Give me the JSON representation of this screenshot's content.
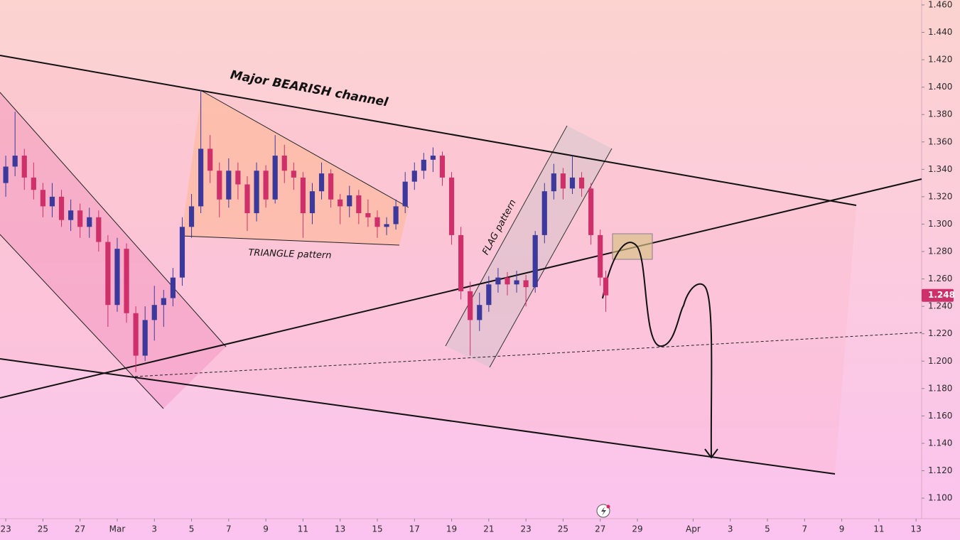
{
  "chart_data": {
    "type": "candlestick",
    "x": [
      0,
      0.5,
      1,
      1.5,
      2,
      2.5,
      3,
      3.5,
      4,
      4.5,
      5,
      5.5,
      6,
      6.5,
      7,
      7.5,
      8,
      8.5,
      9,
      9.5,
      10,
      10.5,
      11,
      11.5,
      12,
      12.5,
      13,
      13.5,
      14,
      14.5,
      15,
      15.5,
      16,
      16.5,
      17,
      17.5,
      18,
      18.5,
      19,
      19.5,
      20,
      20.5,
      21,
      21.5,
      22,
      22.5,
      23,
      23.5,
      24,
      24.5,
      25,
      25.5,
      26,
      26.5,
      27,
      27.5,
      28,
      28.5,
      29,
      29.5,
      30,
      30.5,
      31,
      31.5,
      32,
      32.3
    ],
    "open": [
      1.33,
      1.342,
      1.35,
      1.334,
      1.325,
      1.313,
      1.32,
      1.303,
      1.31,
      1.298,
      1.305,
      1.287,
      1.241,
      1.282,
      1.235,
      1.204,
      1.23,
      1.241,
      1.246,
      1.261,
      1.298,
      1.313,
      1.355,
      1.339,
      1.318,
      1.339,
      1.329,
      1.308,
      1.339,
      1.318,
      1.35,
      1.339,
      1.334,
      1.308,
      1.324,
      1.337,
      1.318,
      1.313,
      1.321,
      1.308,
      1.305,
      1.298,
      1.3,
      1.313,
      1.331,
      1.339,
      1.347,
      1.35,
      1.334,
      1.292,
      1.251,
      1.23,
      1.241,
      1.256,
      1.261,
      1.256,
      1.259,
      1.254,
      1.292,
      1.324,
      1.337,
      1.326,
      1.334,
      1.326,
      1.292,
      1.261
    ],
    "high": [
      1.35,
      1.382,
      1.355,
      1.345,
      1.33,
      1.33,
      1.325,
      1.318,
      1.315,
      1.312,
      1.31,
      1.292,
      1.29,
      1.286,
      1.24,
      1.24,
      1.255,
      1.252,
      1.268,
      1.305,
      1.322,
      1.398,
      1.365,
      1.345,
      1.348,
      1.345,
      1.335,
      1.345,
      1.343,
      1.365,
      1.358,
      1.345,
      1.338,
      1.33,
      1.345,
      1.34,
      1.322,
      1.328,
      1.325,
      1.318,
      1.31,
      1.305,
      1.318,
      1.338,
      1.345,
      1.352,
      1.356,
      1.353,
      1.338,
      1.298,
      1.258,
      1.25,
      1.262,
      1.268,
      1.265,
      1.266,
      1.263,
      1.295,
      1.33,
      1.344,
      1.341,
      1.35,
      1.338,
      1.33,
      1.296,
      1.266
    ],
    "low": [
      1.32,
      1.335,
      1.325,
      1.318,
      1.305,
      1.305,
      1.298,
      1.295,
      1.29,
      1.29,
      1.28,
      1.225,
      1.236,
      1.228,
      1.192,
      1.2,
      1.215,
      1.225,
      1.24,
      1.255,
      1.29,
      1.308,
      1.33,
      1.305,
      1.312,
      1.318,
      1.295,
      1.302,
      1.312,
      1.315,
      1.33,
      1.325,
      1.29,
      1.3,
      1.318,
      1.312,
      1.3,
      1.305,
      1.3,
      1.298,
      1.29,
      1.292,
      1.296,
      1.308,
      1.325,
      1.333,
      1.338,
      1.328,
      1.285,
      1.245,
      1.204,
      1.222,
      1.236,
      1.25,
      1.248,
      1.25,
      1.24,
      1.25,
      1.286,
      1.318,
      1.318,
      1.322,
      1.32,
      1.285,
      1.255,
      1.236
    ],
    "close": [
      1.342,
      1.35,
      1.334,
      1.325,
      1.313,
      1.32,
      1.303,
      1.31,
      1.298,
      1.305,
      1.287,
      1.241,
      1.282,
      1.235,
      1.204,
      1.23,
      1.241,
      1.246,
      1.261,
      1.298,
      1.313,
      1.355,
      1.339,
      1.318,
      1.339,
      1.329,
      1.308,
      1.339,
      1.318,
      1.35,
      1.339,
      1.334,
      1.308,
      1.324,
      1.337,
      1.318,
      1.313,
      1.321,
      1.308,
      1.305,
      1.298,
      1.3,
      1.313,
      1.331,
      1.339,
      1.347,
      1.35,
      1.334,
      1.292,
      1.251,
      1.23,
      1.241,
      1.256,
      1.261,
      1.256,
      1.259,
      1.254,
      1.292,
      1.324,
      1.337,
      1.326,
      1.334,
      1.326,
      1.292,
      1.261,
      1.248
    ],
    "up_color": "#3b3a9c",
    "down_color": "#d0306a",
    "last_price": 1.248,
    "last_price_color": "#d0306a",
    "xlim": [
      -0.31,
      49.3
    ],
    "ylim": [
      1.085,
      1.4636
    ],
    "xticks": [
      {
        "value": 0,
        "label": "23"
      },
      {
        "value": 2,
        "label": "25"
      },
      {
        "value": 4,
        "label": "27"
      },
      {
        "value": 6,
        "label": "Mar"
      },
      {
        "value": 8,
        "label": "3"
      },
      {
        "value": 10,
        "label": "5"
      },
      {
        "value": 12,
        "label": "7"
      },
      {
        "value": 14,
        "label": "9"
      },
      {
        "value": 16,
        "label": "11"
      },
      {
        "value": 18,
        "label": "13"
      },
      {
        "value": 20,
        "label": "15"
      },
      {
        "value": 22,
        "label": "17"
      },
      {
        "value": 24,
        "label": "19"
      },
      {
        "value": 26,
        "label": "21"
      },
      {
        "value": 28,
        "label": "23"
      },
      {
        "value": 30,
        "label": "25"
      },
      {
        "value": 32,
        "label": "27"
      },
      {
        "value": 34,
        "label": "29"
      },
      {
        "value": 37,
        "label": "Apr"
      },
      {
        "value": 39,
        "label": "3"
      },
      {
        "value": 41,
        "label": "5"
      },
      {
        "value": 43,
        "label": "7"
      },
      {
        "value": 45,
        "label": "9"
      },
      {
        "value": 47,
        "label": "11"
      },
      {
        "value": 49,
        "label": "13"
      }
    ],
    "yticks": [
      {
        "value": 1.46,
        "label": "1.460"
      },
      {
        "value": 1.44,
        "label": "1.440"
      },
      {
        "value": 1.42,
        "label": "1.420"
      },
      {
        "value": 1.4,
        "label": "1.400"
      },
      {
        "value": 1.38,
        "label": "1.380"
      },
      {
        "value": 1.36,
        "label": "1.360"
      },
      {
        "value": 1.34,
        "label": "1.340"
      },
      {
        "value": 1.32,
        "label": "1.320"
      },
      {
        "value": 1.3,
        "label": "1.300"
      },
      {
        "value": 1.28,
        "label": "1.280"
      },
      {
        "value": 1.26,
        "label": "1.260"
      },
      {
        "value": 1.24,
        "label": "1.240"
      },
      {
        "value": 1.22,
        "label": "1.220"
      },
      {
        "value": 1.2,
        "label": "1.200"
      },
      {
        "value": 1.18,
        "label": "1.180"
      },
      {
        "value": 1.16,
        "label": "1.160"
      },
      {
        "value": 1.14,
        "label": "1.140"
      },
      {
        "value": 1.12,
        "label": "1.120"
      },
      {
        "value": 1.1,
        "label": "1.100"
      }
    ],
    "annotations": [
      "Major BEARISH channel",
      "TRIANGLE pattern",
      "FLAG pattern"
    ]
  }
}
